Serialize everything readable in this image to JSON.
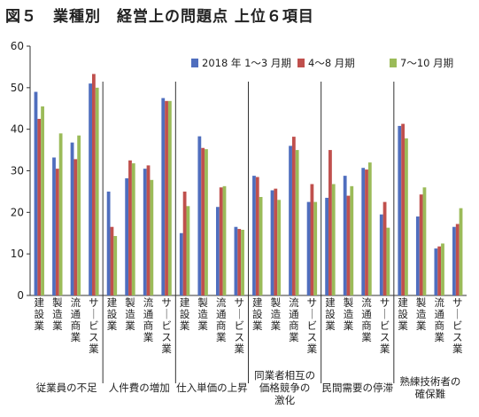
{
  "title": "図５　業種別　経営上の問題点 上位６項目",
  "chart_data": {
    "type": "bar",
    "ylim": [
      0,
      60
    ],
    "yticks": [
      0,
      10,
      20,
      30,
      40,
      50,
      60
    ],
    "grid": false,
    "legend_position": "top-right",
    "series": [
      {
        "name": "2018 年 1～3 月期",
        "color": "#4F6EBE"
      },
      {
        "name": "4～8 月期",
        "color": "#C0504D"
      },
      {
        "name": "7～10 月期",
        "color": "#9BBB59"
      }
    ],
    "groups": [
      {
        "label_lines": [
          "従業員の不足"
        ],
        "categories": [
          "建設業",
          "製造業",
          "流通商業",
          "サービス業"
        ],
        "values": [
          [
            49,
            42.5,
            45.5
          ],
          [
            33.2,
            30.5,
            39
          ],
          [
            36.8,
            32.8,
            38.5
          ],
          [
            51,
            53.3,
            50
          ]
        ]
      },
      {
        "label_lines": [
          "人件費の増加"
        ],
        "categories": [
          "建設業",
          "製造業",
          "流通商業",
          "サービス業"
        ],
        "values": [
          [
            25,
            16.5,
            14.3
          ],
          [
            28.2,
            32.5,
            31.8
          ],
          [
            30.5,
            31.3,
            27.8
          ],
          [
            47.5,
            46.8,
            46.8
          ]
        ]
      },
      {
        "label_lines": [
          "仕入単価の上昇"
        ],
        "categories": [
          "建設業",
          "製造業",
          "流通商業",
          "サービス業"
        ],
        "values": [
          [
            15,
            25,
            21.5
          ],
          [
            38.3,
            35.5,
            35.2
          ],
          [
            21.3,
            26,
            26.3
          ],
          [
            16.5,
            16,
            15.8
          ]
        ]
      },
      {
        "label_lines": [
          "同業者相互の",
          "価格競争の",
          "激化"
        ],
        "categories": [
          "建設業",
          "製造業",
          "流通商業",
          "サービス業"
        ],
        "values": [
          [
            28.8,
            28.5,
            23.7
          ],
          [
            25.3,
            25.7,
            23
          ],
          [
            36,
            38.2,
            35
          ],
          [
            22.5,
            26.8,
            22.5
          ]
        ]
      },
      {
        "label_lines": [
          "民間需要の停滞"
        ],
        "categories": [
          "建設業",
          "製造業",
          "流通商業",
          "サービス業"
        ],
        "values": [
          [
            23.5,
            35,
            26.8
          ],
          [
            28.8,
            24,
            26.3
          ],
          [
            30.7,
            30.3,
            32
          ],
          [
            19.5,
            22.5,
            16.3
          ]
        ]
      },
      {
        "label_lines": [
          "熟練技術者の",
          "確保難"
        ],
        "categories": [
          "建設業",
          "製造業",
          "流通商業",
          "サービス業"
        ],
        "values": [
          [
            40.8,
            41.3,
            37.8
          ],
          [
            19,
            24.3,
            26
          ],
          [
            11.3,
            11.8,
            12.5
          ],
          [
            16.5,
            17.2,
            21
          ]
        ]
      }
    ]
  }
}
